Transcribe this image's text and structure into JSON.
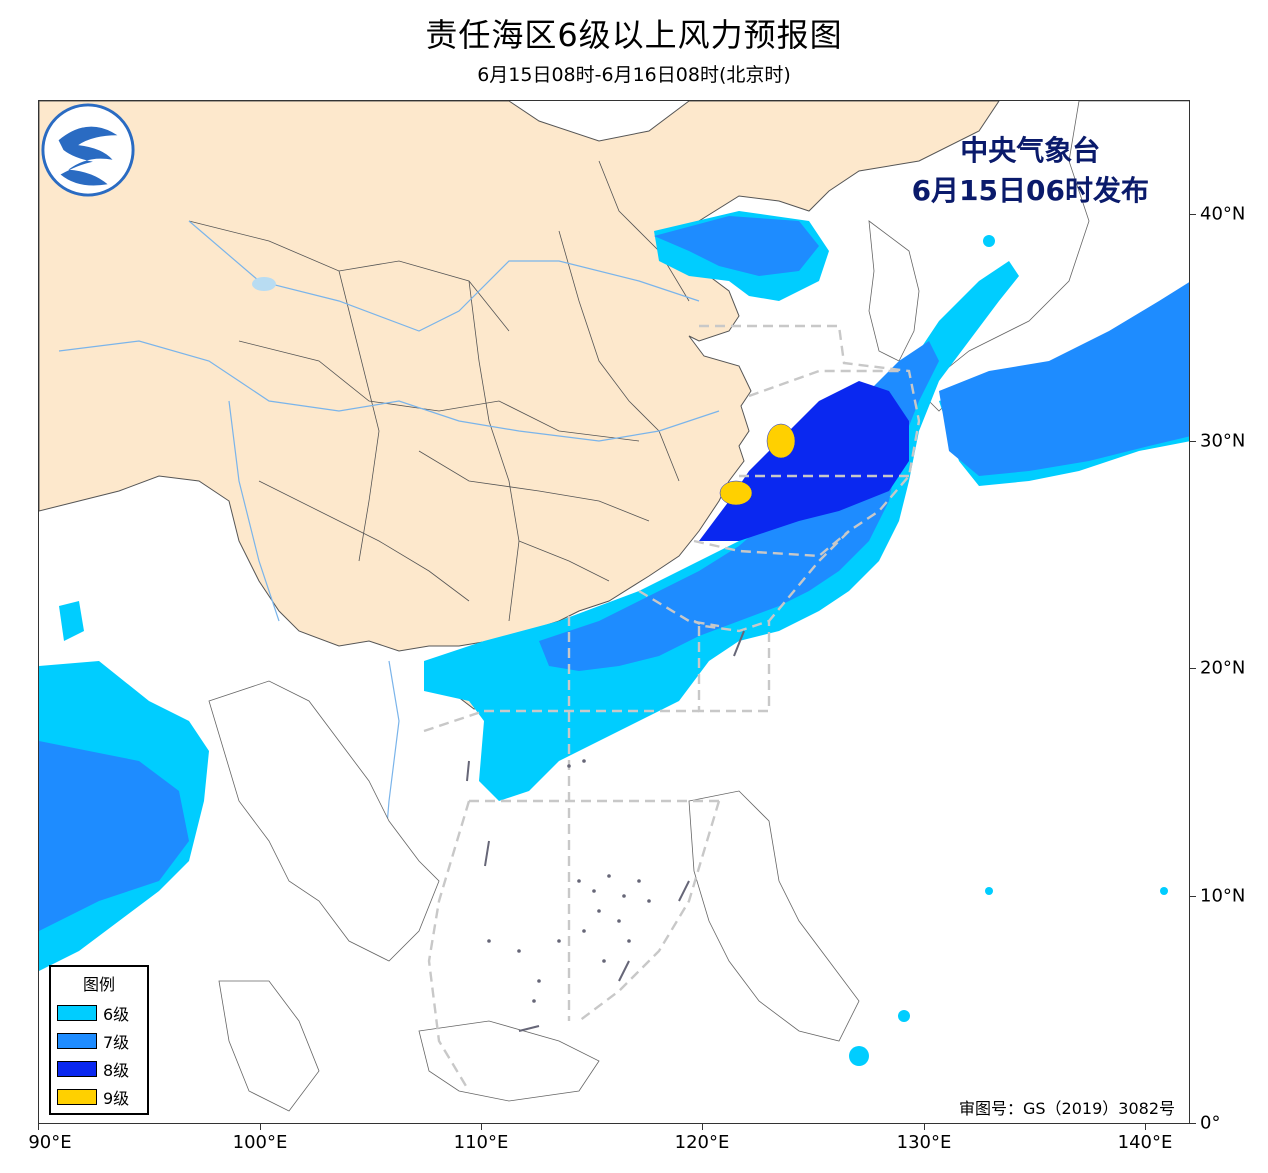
{
  "header": {
    "title": "责任海区6级以上风力预报图",
    "subtitle": "6月15日08时-6月16日08时(北京时)"
  },
  "issuer": {
    "line1": "中央气象台",
    "line2": "6月15日06时发布"
  },
  "approval": "审图号：GS（2019）3082号",
  "legend": {
    "title": "图例",
    "items": [
      {
        "label": "6级",
        "color": "#00cdff"
      },
      {
        "label": "7级",
        "color": "#1e8cff"
      },
      {
        "label": "8级",
        "color": "#0a28f0"
      },
      {
        "label": "9级",
        "color": "#ffd000"
      }
    ]
  },
  "axes": {
    "x_ticks": [
      "90°E",
      "100°E",
      "110°E",
      "120°E",
      "130°E",
      "140°E"
    ],
    "y_ticks": [
      "40°N",
      "30°N",
      "20°N",
      "10°N",
      "0°"
    ]
  },
  "colors": {
    "land_china": "#fde8cc",
    "sea": "#ffffff",
    "boundary": "#555555",
    "river": "#7ab4ea",
    "zone_line": "#c8c8c8"
  },
  "logo": "cma-logo"
}
